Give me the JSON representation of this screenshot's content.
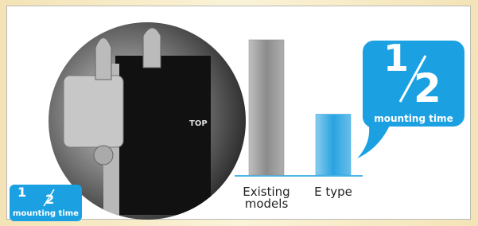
{
  "chart_data": {
    "type": "bar",
    "categories": [
      "Existing models",
      "E type"
    ],
    "series": [
      {
        "colors": [
          "#8c8c8c",
          "#29a3e0"
        ],
        "values": [
          100,
          45
        ]
      }
    ]
  },
  "photo": {
    "label": "TOP"
  },
  "bubble": {
    "numerator": "1",
    "denominator": "2",
    "caption": "mounting time"
  },
  "badge": {
    "numerator": "1",
    "denominator": "2",
    "caption": "mounting time"
  }
}
